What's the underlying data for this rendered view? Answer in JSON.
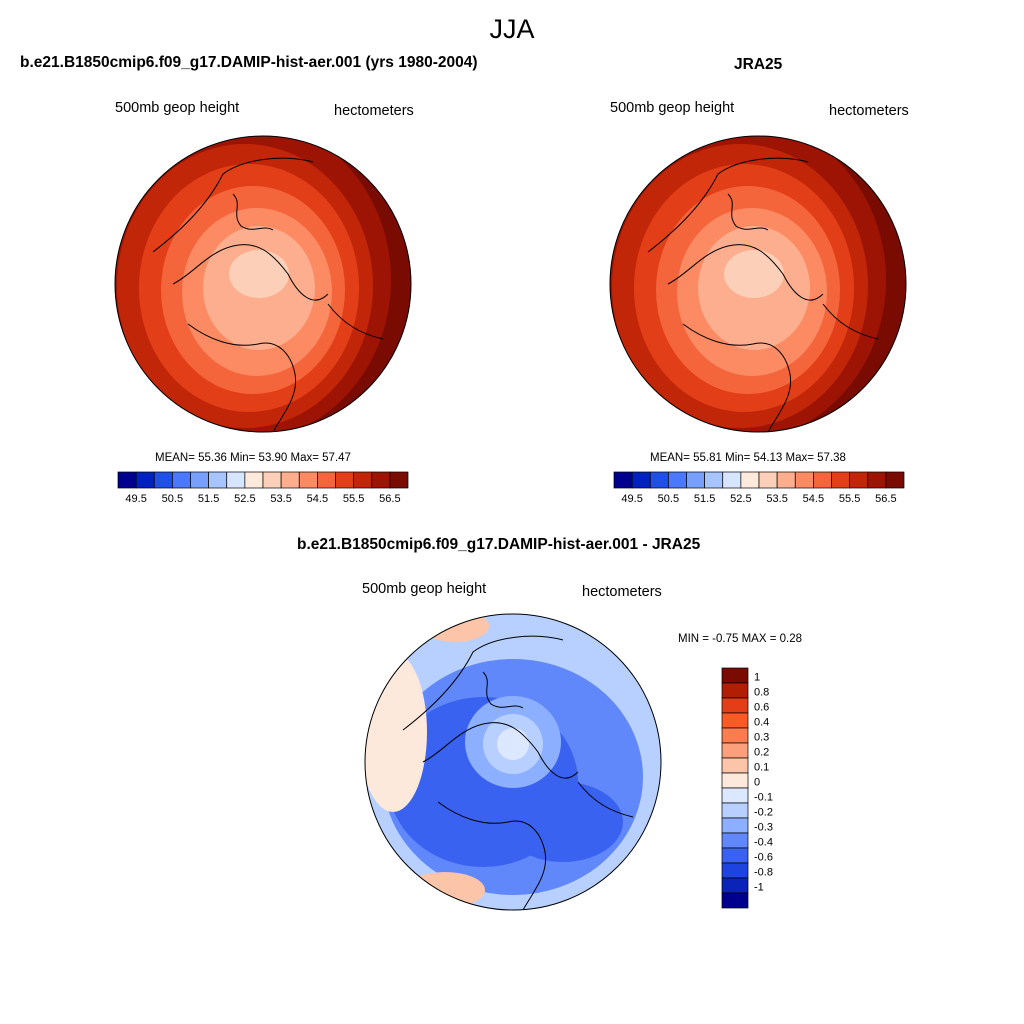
{
  "main_title": "JJA",
  "panels": [
    {
      "title": "b.e21.B1850cmip6.f09_g17.DAMIP-hist-aer.001 (yrs 1980-2004)",
      "variable": "500mb geop height",
      "units": "hectometers",
      "stats_text": "MEAN=  55.36  Min=  53.90  Max=  57.47"
    },
    {
      "title": "JRA25",
      "variable": "500mb geop height",
      "units": "hectometers",
      "stats_text": "MEAN=  55.81  Min=  54.13  Max=  57.38"
    },
    {
      "title": "b.e21.B1850cmip6.f09_g17.DAMIP-hist-aer.001 - JRA25",
      "variable": "500mb geop height",
      "units": "hectometers",
      "stats_text": "MIN =  -0.75 MAX =   0.28"
    }
  ],
  "chart_data": [
    {
      "type": "heatmap",
      "projection": "north polar stereographic",
      "title": "b.e21.B1850cmip6.f09_g17.DAMIP-hist-aer.001 (yrs 1980-2004)",
      "variable": "500mb geop height",
      "units": "hectometers",
      "mean": 55.36,
      "min": 53.9,
      "max": 57.47,
      "colorbar_ticks": [
        "49.5",
        "50.5",
        "51.5",
        "52.5",
        "53.5",
        "54.5",
        "55.5",
        "56.5"
      ],
      "levels": [
        49.5,
        50,
        50.5,
        51,
        51.5,
        52,
        52.5,
        53,
        53.5,
        54,
        54.5,
        55,
        55.5,
        56,
        56.5
      ],
      "colors": [
        "#00008f",
        "#0020c0",
        "#1e50e8",
        "#4a78ff",
        "#7aa0ff",
        "#a8c4ff",
        "#d6e6ff",
        "#fde8dc",
        "#fcd0b8",
        "#fcae8e",
        "#fc8a62",
        "#f5653c",
        "#e23f18",
        "#c22608",
        "#9e1404",
        "#7a0b03"
      ]
    },
    {
      "type": "heatmap",
      "projection": "north polar stereographic",
      "title": "JRA25",
      "variable": "500mb geop height",
      "units": "hectometers",
      "mean": 55.81,
      "min": 54.13,
      "max": 57.38,
      "colorbar_ticks": [
        "49.5",
        "50.5",
        "51.5",
        "52.5",
        "53.5",
        "54.5",
        "55.5",
        "56.5"
      ],
      "levels": [
        49.5,
        50,
        50.5,
        51,
        51.5,
        52,
        52.5,
        53,
        53.5,
        54,
        54.5,
        55,
        55.5,
        56,
        56.5
      ],
      "colors": [
        "#00008f",
        "#0020c0",
        "#1e50e8",
        "#4a78ff",
        "#7aa0ff",
        "#a8c4ff",
        "#d6e6ff",
        "#fde8dc",
        "#fcd0b8",
        "#fcae8e",
        "#fc8a62",
        "#f5653c",
        "#e23f18",
        "#c22608",
        "#9e1404",
        "#7a0b03"
      ]
    },
    {
      "type": "heatmap",
      "projection": "north polar stereographic",
      "title": "b.e21.B1850cmip6.f09_g17.DAMIP-hist-aer.001 - JRA25",
      "variable": "500mb geop height",
      "units": "hectometers",
      "min": -0.75,
      "max": 0.28,
      "colorbar_ticks": [
        "1",
        "0.8",
        "0.6",
        "0.4",
        "0.3",
        "0.2",
        "0.1",
        "0",
        "-0.1",
        "-0.2",
        "-0.3",
        "-0.4",
        "-0.6",
        "-0.8",
        "-1"
      ],
      "colors": [
        "#7a0b03",
        "#b01e06",
        "#e23f18",
        "#fc5a24",
        "#fc7c50",
        "#fca07c",
        "#fcc4a8",
        "#fde8dc",
        "#dce8ff",
        "#b8d0ff",
        "#8cb0ff",
        "#6088fa",
        "#3a62f0",
        "#1e44e0",
        "#0a24b8",
        "#00008f"
      ]
    }
  ]
}
